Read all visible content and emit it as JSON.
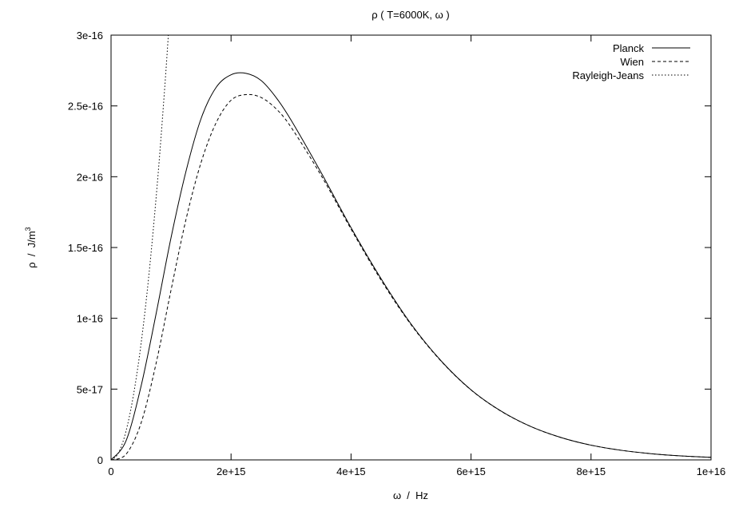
{
  "chart_data": {
    "type": "line",
    "title": "ρ ( T=6000K, ω )",
    "xlabel": "ω  /  Hz",
    "ylabel": "ρ  /  J/m",
    "ylabel_sup": "3",
    "xlim": [
      0,
      1e+16
    ],
    "ylim": [
      0,
      3e-16
    ],
    "x_ticks": [
      "0",
      "2e+15",
      "4e+15",
      "6e+15",
      "8e+15",
      "1e+16"
    ],
    "y_ticks": [
      "0",
      "5e-17",
      "1e-16",
      "1.5e-16",
      "2e-16",
      "2.5e-16",
      "3e-16"
    ],
    "legend_position": "top-right",
    "series": [
      {
        "name": "Planck",
        "dash": "solid",
        "x": [
          0,
          250000000000000.0,
          500000000000000.0,
          750000000000000.0,
          1000000000000000.0,
          1250000000000000.0,
          1500000000000000.0,
          1750000000000000.0,
          2000000000000000.0,
          2250000000000000.0,
          2500000000000000.0,
          2750000000000000.0,
          3000000000000000.0,
          3500000000000000.0,
          4000000000000000.0,
          4500000000000000.0,
          5000000000000000.0,
          5500000000000000.0,
          6000000000000000.0,
          6500000000000000.0,
          7000000000000000.0,
          7500000000000000.0,
          8000000000000000.0,
          8500000000000000.0,
          9000000000000000.0,
          9500000000000000.0,
          1e+16
        ],
        "y": [
          0,
          1.35e-17,
          5.2e-17,
          1.03e-16,
          1.57e-16,
          2.04e-16,
          2.41e-16,
          2.63e-16,
          2.72e-16,
          2.73e-16,
          2.68e-16,
          2.56e-16,
          2.4e-16,
          2.03e-16,
          1.64e-16,
          1.28e-16,
          9.6e-17,
          7e-17,
          4.95e-17,
          3.45e-17,
          2.35e-17,
          1.58e-17,
          1.04e-17,
          6.8e-18,
          4.4e-18,
          2.8e-18,
          1.8e-18
        ]
      },
      {
        "name": "Wien",
        "dash": "dashed",
        "x": [
          0,
          250000000000000.0,
          500000000000000.0,
          750000000000000.0,
          1000000000000000.0,
          1250000000000000.0,
          1500000000000000.0,
          1750000000000000.0,
          2000000000000000.0,
          2250000000000000.0,
          2500000000000000.0,
          2750000000000000.0,
          3000000000000000.0,
          3500000000000000.0,
          4000000000000000.0,
          4500000000000000.0,
          5000000000000000.0,
          5500000000000000.0,
          6000000000000000.0,
          6500000000000000.0,
          7000000000000000.0,
          7500000000000000.0,
          8000000000000000.0,
          8500000000000000.0,
          9000000000000000.0,
          9500000000000000.0,
          1e+16
        ],
        "y": [
          0,
          4e-18,
          2.6e-17,
          6.8e-17,
          1.2e-16,
          1.7e-16,
          2.1e-16,
          2.38e-16,
          2.54e-16,
          2.58e-16,
          2.56e-16,
          2.48e-16,
          2.35e-16,
          2.01e-16,
          1.63e-16,
          1.27e-16,
          9.55e-17,
          6.98e-17,
          4.94e-17,
          3.44e-17,
          2.35e-17,
          1.58e-17,
          1.04e-17,
          6.8e-18,
          4.4e-18,
          2.8e-18,
          1.8e-18
        ]
      },
      {
        "name": "Rayleigh-Jeans",
        "dash": "dotted",
        "x": [
          0,
          100000000000000.0,
          200000000000000.0,
          300000000000000.0,
          400000000000000.0,
          500000000000000.0,
          600000000000000.0,
          700000000000000.0,
          800000000000000.0,
          900000000000000.0,
          955000000000000.0
        ],
        "y": [
          0,
          3.3e-18,
          1.3e-17,
          2.95e-17,
          5.25e-17,
          8.2e-17,
          1.18e-16,
          1.61e-16,
          2.1e-16,
          2.66e-16,
          3e-16
        ]
      }
    ]
  }
}
